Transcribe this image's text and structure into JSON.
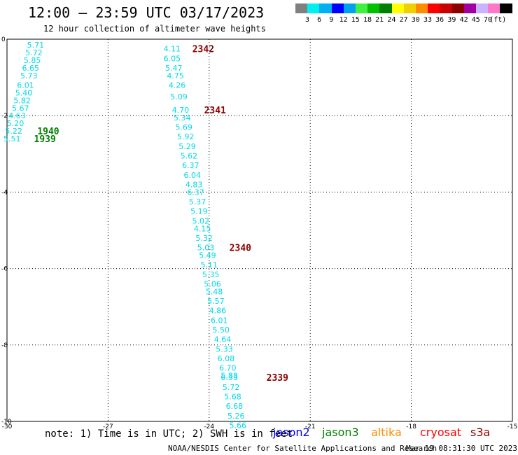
{
  "header": {
    "title": "12:00 – 23:59 UTC 03/17/2023",
    "subtitle": "12 hour collection of altimeter wave heights"
  },
  "color_scale": {
    "swatches": [
      "#808080",
      "#00f0f0",
      "#00b0f0",
      "#0000ff",
      "#00a0f0",
      "#40f040",
      "#00c000",
      "#008000",
      "#ffff00",
      "#f0d000",
      "#ff8c00",
      "#ff0000",
      "#c80000",
      "#8b0000",
      "#a000a0",
      "#c8b4ff",
      "#ff78c8",
      "#000000"
    ],
    "labels": [
      "3",
      "6",
      "9",
      "12",
      "15",
      "18",
      "21",
      "24",
      "27",
      "30",
      "33",
      "36",
      "39",
      "42",
      "45",
      "70"
    ],
    "unit": "(ft)"
  },
  "map": {
    "x_ticks": [
      "-30",
      "-27",
      "-24",
      "-21",
      "-18",
      "-15"
    ],
    "y_ticks": [
      "0",
      "-2",
      "-4",
      "-6",
      "-8",
      "-10"
    ],
    "track_color": "#00d8e8",
    "tracks": [
      {
        "points": [
          {
            "lon": -29.15,
            "lat": -0.15,
            "swh": "5.71"
          },
          {
            "lon": -29.2,
            "lat": -0.35,
            "swh": "5.72"
          },
          {
            "lon": -29.25,
            "lat": -0.55,
            "swh": "5.85"
          },
          {
            "lon": -29.3,
            "lat": -0.75,
            "swh": "6.65"
          },
          {
            "lon": -29.35,
            "lat": -0.95,
            "swh": "5.73"
          },
          {
            "lon": -29.45,
            "lat": -1.2,
            "swh": "6.01"
          },
          {
            "lon": -29.5,
            "lat": -1.4,
            "swh": "5.40"
          },
          {
            "lon": -29.55,
            "lat": -1.6,
            "swh": "5.82"
          },
          {
            "lon": -29.6,
            "lat": -1.8,
            "swh": "5.67"
          },
          {
            "lon": -29.7,
            "lat": -2.0,
            "swh": "4.63"
          },
          {
            "lon": -29.75,
            "lat": -2.2,
            "swh": "5.20"
          },
          {
            "lon": -29.8,
            "lat": -2.4,
            "swh": "5.22"
          },
          {
            "lon": -29.85,
            "lat": -2.6,
            "swh": "5.51"
          }
        ]
      },
      {
        "points": [
          {
            "lon": -25.1,
            "lat": -0.25,
            "swh": "4.11"
          },
          {
            "lon": -25.1,
            "lat": -0.5,
            "swh": "6.05"
          },
          {
            "lon": -25.05,
            "lat": -0.75,
            "swh": "5.47"
          },
          {
            "lon": -25.0,
            "lat": -0.95,
            "swh": "4.75"
          },
          {
            "lon": -24.95,
            "lat": -1.2,
            "swh": "4.26"
          },
          {
            "lon": -24.9,
            "lat": -1.5,
            "swh": "5.09"
          },
          {
            "lon": -24.85,
            "lat": -1.85,
            "swh": "4.70"
          },
          {
            "lon": -24.8,
            "lat": -2.05,
            "swh": "5.34"
          },
          {
            "lon": -24.75,
            "lat": -2.3,
            "swh": "5.69"
          },
          {
            "lon": -24.7,
            "lat": -2.55,
            "swh": "5.92"
          },
          {
            "lon": -24.65,
            "lat": -2.8,
            "swh": "5.29"
          },
          {
            "lon": -24.6,
            "lat": -3.05,
            "swh": "5.62"
          },
          {
            "lon": -24.55,
            "lat": -3.3,
            "swh": "6.37"
          },
          {
            "lon": -24.5,
            "lat": -3.55,
            "swh": "6.04"
          },
          {
            "lon": -24.45,
            "lat": -3.8,
            "swh": "4.83"
          },
          {
            "lon": -24.4,
            "lat": -4.0,
            "swh": "6.37"
          },
          {
            "lon": -24.35,
            "lat": -4.25,
            "swh": "5.37"
          },
          {
            "lon": -24.3,
            "lat": -4.5,
            "swh": "5.19"
          },
          {
            "lon": -24.25,
            "lat": -4.75,
            "swh": "5.02"
          },
          {
            "lon": -24.2,
            "lat": -4.95,
            "swh": "4.15"
          },
          {
            "lon": -24.15,
            "lat": -5.2,
            "swh": "5.32"
          },
          {
            "lon": -24.1,
            "lat": -5.45,
            "swh": "5.03"
          },
          {
            "lon": -24.05,
            "lat": -5.65,
            "swh": "5.49"
          },
          {
            "lon": -24.0,
            "lat": -5.9,
            "swh": "5.11"
          },
          {
            "lon": -23.95,
            "lat": -6.15,
            "swh": "5.35"
          },
          {
            "lon": -23.9,
            "lat": -6.4,
            "swh": "5.06"
          },
          {
            "lon": -23.85,
            "lat": -6.6,
            "swh": "5.48"
          },
          {
            "lon": -23.8,
            "lat": -6.85,
            "swh": "5.57"
          },
          {
            "lon": -23.75,
            "lat": -7.1,
            "swh": "4.86"
          },
          {
            "lon": -23.7,
            "lat": -7.35,
            "swh": "6.01"
          },
          {
            "lon": -23.65,
            "lat": -7.6,
            "swh": "5.50"
          },
          {
            "lon": -23.6,
            "lat": -7.85,
            "swh": "4.64"
          },
          {
            "lon": -23.55,
            "lat": -8.1,
            "swh": "5.33"
          },
          {
            "lon": -23.5,
            "lat": -8.35,
            "swh": "6.08"
          },
          {
            "lon": -23.45,
            "lat": -8.6,
            "swh": "6.70"
          },
          {
            "lon": -23.4,
            "lat": -8.8,
            "swh": "5.88"
          },
          {
            "lon": -23.4,
            "lat": -8.85,
            "swh": "6.33"
          },
          {
            "lon": -23.35,
            "lat": -9.1,
            "swh": "5.72"
          },
          {
            "lon": -23.3,
            "lat": -9.35,
            "swh": "5.68"
          },
          {
            "lon": -23.25,
            "lat": -9.6,
            "swh": "6.68"
          },
          {
            "lon": -23.2,
            "lat": -9.85,
            "swh": "5.26"
          },
          {
            "lon": -23.15,
            "lat": -10.1,
            "swh": "5.66"
          }
        ]
      }
    ],
    "time_labels": [
      {
        "text": "2342",
        "lon": -24.5,
        "lat": -0.25,
        "color": "#8b0000"
      },
      {
        "text": "2341",
        "lon": -24.15,
        "lat": -1.85,
        "color": "#8b0000"
      },
      {
        "text": "2340",
        "lon": -23.4,
        "lat": -5.45,
        "color": "#8b0000"
      },
      {
        "text": "2339",
        "lon": -22.3,
        "lat": -8.85,
        "color": "#8b0000"
      },
      {
        "text": "1940",
        "lon": -29.1,
        "lat": -2.4,
        "color": "#008000"
      },
      {
        "text": "1939",
        "lon": -29.2,
        "lat": -2.6,
        "color": "#008000"
      }
    ]
  },
  "footer": {
    "note": "note: 1) Time is in UTC; 2) SWH is in feet",
    "missions": [
      {
        "label": "jason2",
        "color": "#0000ff"
      },
      {
        "label": "jason3",
        "color": "#008000"
      },
      {
        "label": "altika",
        "color": "#ff8c00"
      },
      {
        "label": "cryosat",
        "color": "#ff0000"
      },
      {
        "label": "s3a",
        "color": "#8b0000"
      }
    ],
    "credit": "NOAA/NESDIS Center for Satellite Applications and Research",
    "timestamp": "Mar 19 08:31:30 UTC 2023"
  }
}
